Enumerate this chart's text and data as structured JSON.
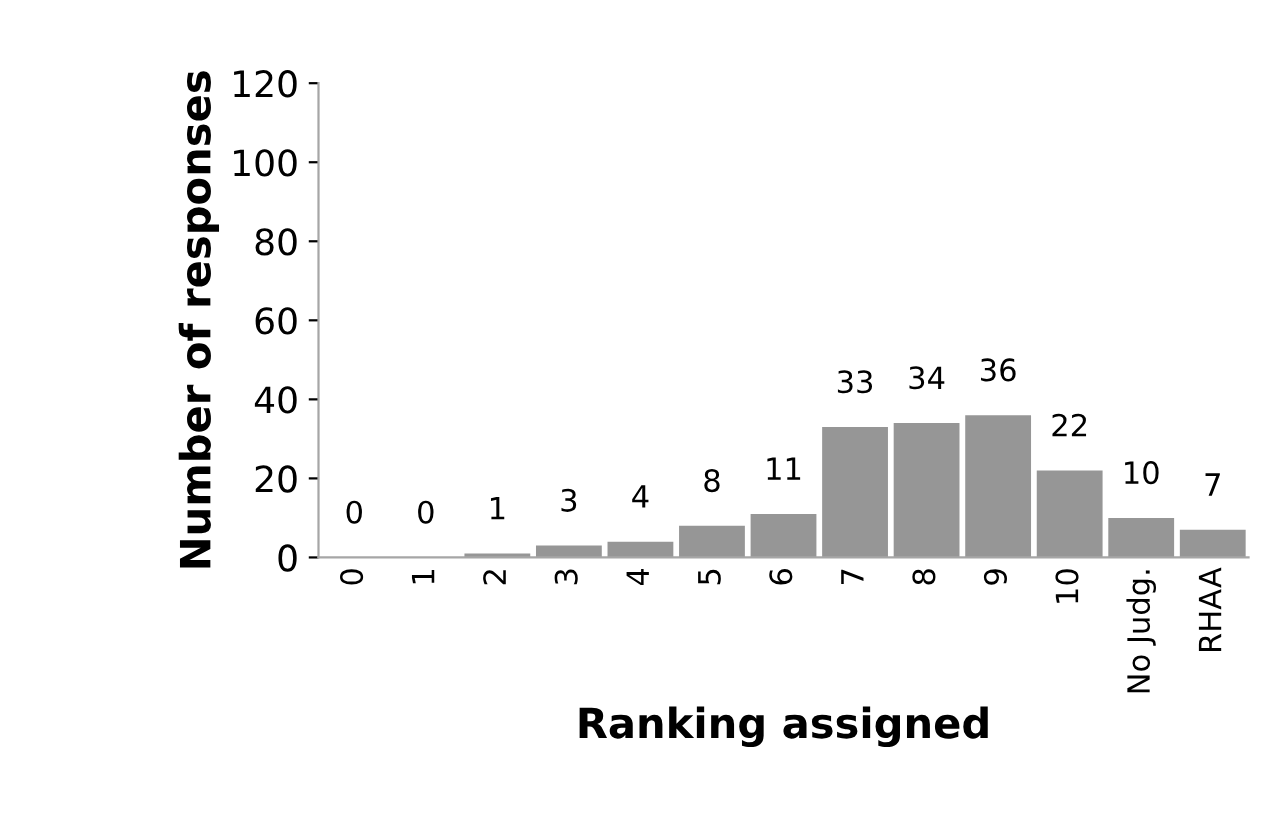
{
  "chart_data": {
    "type": "bar",
    "xlabel": "Ranking assigned",
    "ylabel": "Number of responses",
    "categories": [
      "0",
      "1",
      "2",
      "3",
      "4",
      "5",
      "6",
      "7",
      "8",
      "9",
      "10",
      "No Judg.",
      "RHAA"
    ],
    "values": [
      0,
      0,
      1,
      3,
      4,
      8,
      11,
      33,
      34,
      36,
      22,
      10,
      7
    ],
    "color": "#969696",
    "ylim": [
      0,
      120
    ],
    "yticks": [
      0,
      20,
      40,
      60,
      80,
      100,
      120
    ],
    "grid": false,
    "data_labels": true
  }
}
